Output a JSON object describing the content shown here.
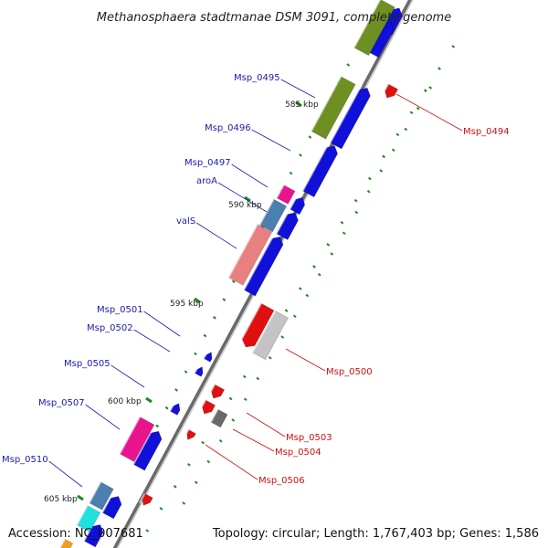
{
  "title": "Methanosphaera stadtmanae DSM 3091, complete genome",
  "footer": {
    "accession": "Accession: NC_007681",
    "topology": "Topology: circular; Length: 1,767,403 bp; Genes: 1,586"
  },
  "scale_labels": [
    "585 kbp",
    "590 kbp",
    "595 kbp",
    "600 kbp",
    "605 kbp"
  ],
  "colors": {
    "forward_cds": "#1010d8",
    "reverse_cds": "#e01010",
    "backbone": "#9a9a9a",
    "left_label": "#1a1ab0",
    "right_label": "#cc1010",
    "tick": "#1a8a1a"
  },
  "left_labels": [
    {
      "text": "Msp_0495"
    },
    {
      "text": "Msp_0496"
    },
    {
      "text": "Msp_0497"
    },
    {
      "text": "aroA"
    },
    {
      "text": "valS"
    },
    {
      "text": "Msp_0501"
    },
    {
      "text": "Msp_0502"
    },
    {
      "text": "Msp_0505"
    },
    {
      "text": "Msp_0507"
    },
    {
      "text": "Msp_0510"
    }
  ],
  "right_labels": [
    {
      "text": "Msp_0494"
    },
    {
      "text": "Msp_0500"
    },
    {
      "text": "Msp_0503"
    },
    {
      "text": "Msp_0504"
    },
    {
      "text": "Msp_0506"
    }
  ],
  "feature_colors": {
    "cog_olive": "#6e8f22",
    "cog_pink": "#e8148c",
    "cog_steel": "#4a7fb0",
    "cog_salmon": "#e88080",
    "cog_grey": "#c4c4c4",
    "cog_dark": "#6a6a6a",
    "cog_cyan": "#20e0e0",
    "cog_orange": "#f0a020"
  }
}
